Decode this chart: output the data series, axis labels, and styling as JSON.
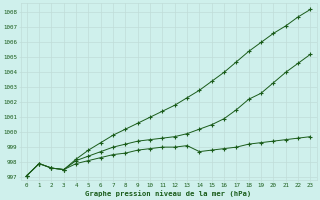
{
  "title": "Graphe pression niveau de la mer (hPa)",
  "background_color": "#cff0ec",
  "grid_color": "#c0ddd8",
  "line_color": "#1a5c1a",
  "xmin": 0,
  "xmax": 23,
  "ymin": 996.8,
  "ymax": 1008.6,
  "yticks": [
    997,
    998,
    999,
    1000,
    1001,
    1002,
    1003,
    1004,
    1005,
    1006,
    1007,
    1008
  ],
  "xticks": [
    0,
    1,
    2,
    3,
    4,
    5,
    6,
    7,
    8,
    9,
    10,
    11,
    12,
    13,
    14,
    15,
    16,
    17,
    18,
    19,
    20,
    21,
    22,
    23
  ],
  "series1": [
    997.1,
    997.9,
    997.6,
    997.5,
    997.9,
    998.1,
    998.3,
    998.5,
    998.6,
    998.8,
    998.9,
    999.0,
    999.0,
    999.1,
    998.7,
    998.8,
    998.9,
    999.0,
    999.2,
    999.3,
    999.4,
    999.5,
    999.6,
    999.7
  ],
  "series2": [
    997.1,
    997.9,
    997.6,
    997.5,
    998.1,
    998.4,
    998.7,
    999.0,
    999.2,
    999.4,
    999.5,
    999.6,
    999.7,
    999.9,
    1000.2,
    1000.5,
    1000.9,
    1001.5,
    1002.2,
    1002.6,
    1003.3,
    1004.0,
    1004.6,
    1005.2
  ],
  "series3": [
    997.1,
    997.9,
    997.6,
    997.5,
    998.2,
    998.8,
    999.3,
    999.8,
    1000.2,
    1000.6,
    1001.0,
    1001.4,
    1001.8,
    1002.3,
    1002.8,
    1003.4,
    1004.0,
    1004.7,
    1005.4,
    1006.0,
    1006.6,
    1007.1,
    1007.7,
    1008.2
  ]
}
